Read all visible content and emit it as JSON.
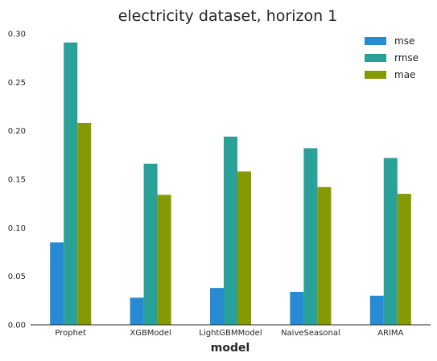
{
  "chart_data": {
    "type": "bar",
    "title": "electricity dataset, horizon 1",
    "xlabel": "model",
    "ylabel": "",
    "categories": [
      "Prophet",
      "XGBModel",
      "LightGBMModel",
      "NaiveSeasonal",
      "ARIMA"
    ],
    "series": [
      {
        "name": "mse",
        "color": "#268bd2",
        "values": [
          0.085,
          0.028,
          0.038,
          0.034,
          0.03
        ]
      },
      {
        "name": "rmse",
        "color": "#2aa198",
        "values": [
          0.291,
          0.166,
          0.194,
          0.182,
          0.172
        ]
      },
      {
        "name": "mae",
        "color": "#859900",
        "values": [
          0.208,
          0.134,
          0.158,
          0.142,
          0.135
        ]
      }
    ],
    "ylim": [
      0,
      0.3
    ],
    "yticks": [
      "0.00",
      "0.05",
      "0.10",
      "0.15",
      "0.20",
      "0.25",
      "0.30"
    ],
    "grid": false,
    "legend_position": "top-right"
  }
}
